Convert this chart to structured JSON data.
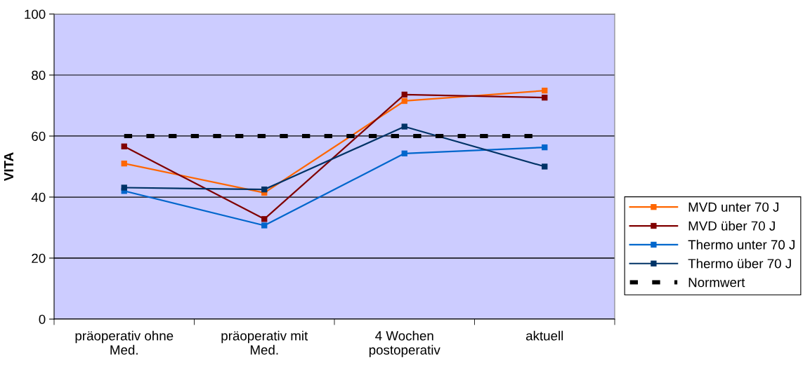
{
  "chart_data": {
    "type": "line",
    "ylabel": "VITA",
    "categories": [
      "präoperativ ohne\nMed.",
      "präoperativ mit\nMed.",
      "4 Wochen\npostoperativ",
      "aktuell"
    ],
    "series": [
      {
        "name": "MVD unter 70 J",
        "color": "#ff6600",
        "values": [
          51.0,
          41.4,
          71.5,
          74.9
        ]
      },
      {
        "name": "MVD über 70 J",
        "color": "#800000",
        "values": [
          56.6,
          32.8,
          73.6,
          72.6
        ]
      },
      {
        "name": "Thermo unter 70 J",
        "color": "#0066cc",
        "values": [
          42.0,
          30.7,
          54.3,
          56.3
        ]
      },
      {
        "name": "Thermo über 70 J",
        "color": "#003366",
        "values": [
          43.1,
          42.5,
          63.1,
          50.0
        ]
      },
      {
        "name": "Normwert",
        "color": "#000000",
        "values": [
          60,
          60,
          60,
          60
        ],
        "marker": "none",
        "line_style": "dashed"
      }
    ],
    "ylim": [
      0,
      100
    ],
    "yticks": [
      0,
      20,
      40,
      60,
      80,
      100
    ],
    "grid": "y",
    "legend": "right",
    "marker": "square",
    "line_style": "solid"
  }
}
